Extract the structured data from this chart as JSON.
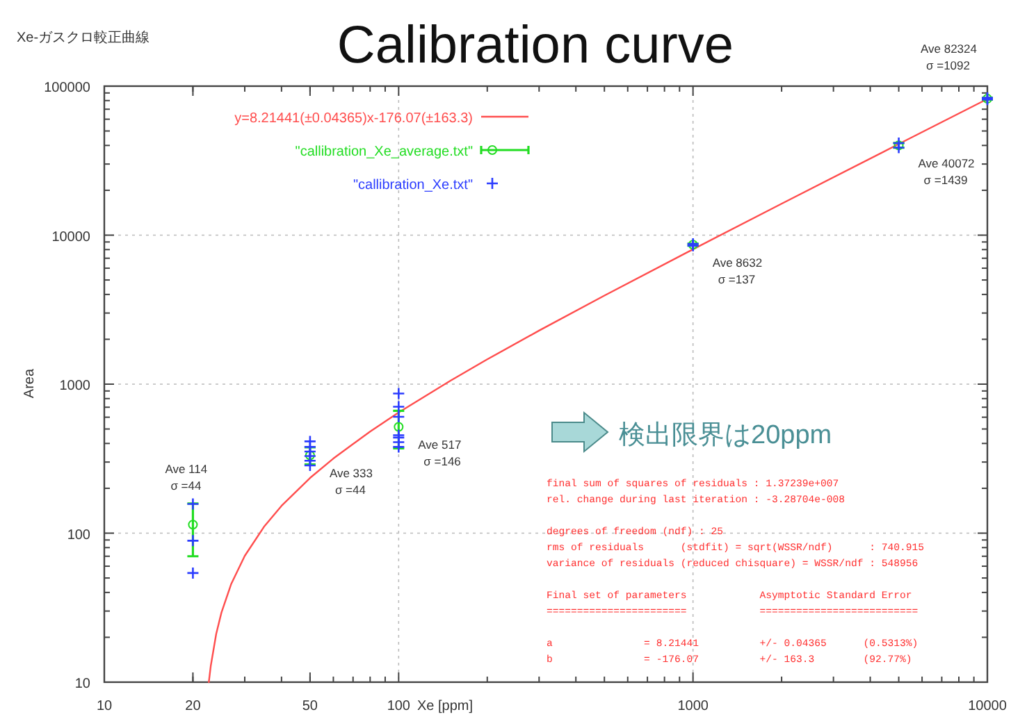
{
  "chart_data": {
    "type": "scatter",
    "title": "Calibration curve",
    "subtitle": "Xe-ガスクロ較正曲線",
    "xlabel": "Xe [ppm]",
    "ylabel": "Area",
    "log": "xy",
    "xlim": [
      10,
      10000
    ],
    "ylim": [
      10,
      100000
    ],
    "xticks": [
      10,
      20,
      50,
      100,
      1000,
      10000
    ],
    "yticks": [
      10,
      100,
      1000,
      10000,
      100000
    ],
    "grid": true,
    "legend": "top left",
    "series": [
      {
        "type": "line",
        "name": "y=8.21441(±0.04365)x-176.07(±163.3)",
        "color": "#ff4d4d",
        "marker": "none",
        "line_style": "solid",
        "x": [
          22.65,
          23,
          24,
          25,
          27,
          30,
          35,
          40,
          50,
          60,
          80,
          100,
          150,
          200,
          300,
          500,
          1000,
          2000,
          5000,
          10000
        ],
        "values": [
          10,
          12.86,
          21.08,
          29.29,
          45.72,
          70.36,
          111.43,
          152.51,
          234.65,
          316.79,
          481.08,
          645.37,
          1056.09,
          1466.81,
          2288.25,
          3931.14,
          8038.34,
          16252.75,
          40895.98,
          81968.03
        ]
      },
      {
        "type": "scatter",
        "name": "\"callibration_Xe_average.txt\"",
        "color": "#22dd22",
        "marker": "circle",
        "x": [
          20,
          50,
          100,
          1000,
          5000,
          10000
        ],
        "values": [
          114,
          333,
          517,
          8632,
          40072,
          82324
        ],
        "errors": [
          44,
          44,
          146,
          137,
          1439,
          1092
        ]
      },
      {
        "type": "scatter",
        "name": "\"callibration_Xe.txt\"",
        "color": "#2b3cff",
        "marker": "cross",
        "x": [
          20,
          20,
          20,
          50,
          50,
          50,
          50,
          50,
          50,
          100,
          100,
          100,
          100,
          100,
          100,
          100,
          1000,
          1000,
          5000,
          5000,
          10000,
          10000
        ],
        "values": [
          157,
          89,
          54,
          413,
          379,
          353,
          329,
          306,
          285,
          865,
          706,
          604,
          454,
          438,
          408,
          379,
          8500,
          8750,
          38700,
          41500,
          81300,
          83400
        ]
      }
    ],
    "annotations": [
      {
        "text": "Ave 114\nσ =44",
        "x": 20,
        "y": 114
      },
      {
        "text": "Ave 333\nσ =44",
        "x": 50,
        "y": 333
      },
      {
        "text": "Ave 517\nσ =146",
        "x": 100,
        "y": 517
      },
      {
        "text": "Ave 8632\nσ =137",
        "x": 1000,
        "y": 8632
      },
      {
        "text": "Ave 40072\nσ =1439",
        "x": 5000,
        "y": 40072
      },
      {
        "text": "Ave 82324\nσ =1092",
        "x": 10000,
        "y": 82324
      },
      "検出限界は20ppm",
      "final sum of squares of residuals : 1.37239e+007\nrel. change during last iteration : -3.28704e-008\n\ndegrees of freedom (ndf) : 25\nrms of residuals      (stdfit) = sqrt(WSSR/ndf)      : 740.915\nvariance of residuals (reduced chisquare) = WSSR/ndf : 548956\n\nFinal set of parameters            Asymptotic Standard Error\n=======================            ==========================\n\na               = 8.21441          +/- 0.04365      (0.5313%)\nb               = -176.07          +/- 163.3        (92.77%)"
    ]
  }
}
